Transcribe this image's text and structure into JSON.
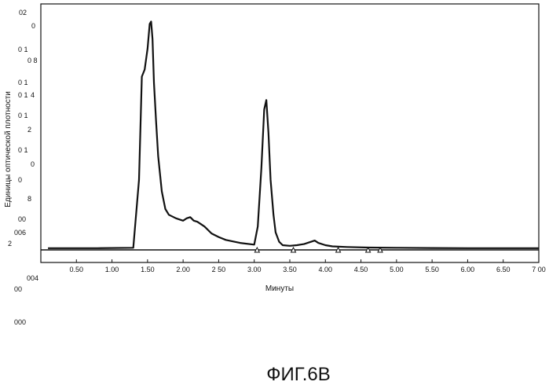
{
  "chart_data": {
    "type": "line",
    "xlabel": "Минуты",
    "ylabel": "Единицы оптической плотности",
    "xlim": [
      0,
      7.0
    ],
    "ylim": [
      0,
      0.2
    ],
    "x_tick_labels": [
      "0.50",
      "1.00",
      "1.50",
      "2.00",
      "2 50",
      "3.00",
      "3.50",
      "4.00",
      "4.50",
      "5.00",
      "5.50",
      "6.00",
      "6.50",
      "7 00"
    ],
    "y_tick_labels_raw": [
      "02",
      "0",
      "0 1",
      "0 8",
      "0 1",
      "0 1",
      "4",
      "0 1",
      "2",
      "0 1",
      "0",
      "0",
      "8",
      "00",
      "006",
      "2",
      "004",
      "00",
      "000"
    ],
    "series": [
      {
        "x": [
          0.1,
          0.8,
          1.3,
          1.38,
          1.42,
          1.46,
          1.5,
          1.53,
          1.55,
          1.57,
          1.59,
          1.62,
          1.65,
          1.7,
          1.75,
          1.8,
          1.9,
          2.0,
          2.05,
          2.1,
          2.15,
          2.2,
          2.3,
          2.4,
          2.5,
          2.6,
          2.8,
          3.0,
          3.05,
          3.1,
          3.14,
          3.17,
          3.2,
          3.23,
          3.27,
          3.3,
          3.35,
          3.4,
          3.5,
          3.6,
          3.7,
          3.8,
          3.85,
          3.9,
          4.0,
          4.1,
          4.3,
          4.6,
          5.0,
          5.5,
          6.0,
          7.0
        ],
        "y": [
          0.0015,
          0.0015,
          0.0018,
          0.06,
          0.148,
          0.154,
          0.172,
          0.193,
          0.195,
          0.18,
          0.143,
          0.11,
          0.08,
          0.05,
          0.035,
          0.03,
          0.027,
          0.025,
          0.027,
          0.028,
          0.025,
          0.024,
          0.02,
          0.014,
          0.011,
          0.0085,
          0.006,
          0.0045,
          0.02,
          0.07,
          0.12,
          0.128,
          0.1,
          0.06,
          0.03,
          0.015,
          0.007,
          0.004,
          0.0035,
          0.004,
          0.005,
          0.007,
          0.008,
          0.006,
          0.004,
          0.003,
          0.0025,
          0.002,
          0.0018,
          0.0016,
          0.0015,
          0.0015
        ]
      }
    ],
    "integration_markers_x": [
      3.04,
      3.55,
      4.18,
      4.6,
      4.77
    ]
  },
  "caption": "ФИГ.6В"
}
